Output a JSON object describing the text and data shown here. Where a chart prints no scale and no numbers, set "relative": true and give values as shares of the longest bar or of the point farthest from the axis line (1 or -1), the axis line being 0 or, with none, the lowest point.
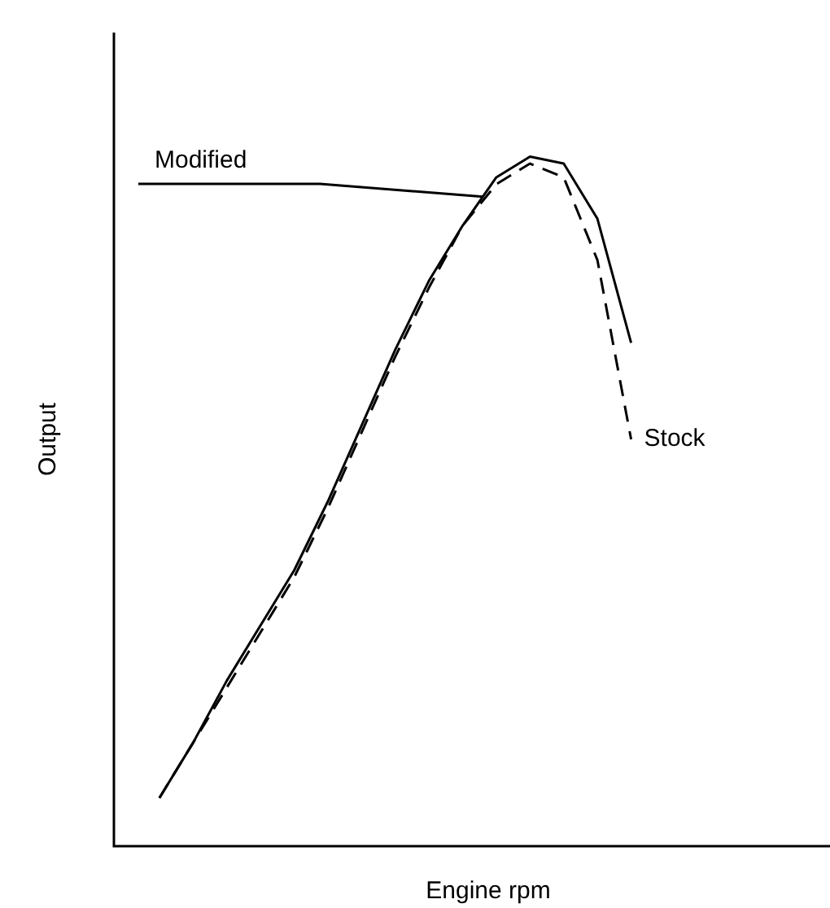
{
  "chart_data": {
    "type": "line",
    "relative": true,
    "xlabel": "Engine rpm",
    "ylabel": "Output",
    "categories": [
      null,
      null,
      null,
      null,
      null,
      null,
      null,
      null,
      null,
      null,
      null,
      null,
      null,
      null,
      null
    ],
    "legend": false,
    "grid": false,
    "marker": "none",
    "tick_labels": false,
    "series": [
      {
        "name": "Modified",
        "color": "#000000",
        "line_style": "solid",
        "values": [
          0.07,
          0.15,
          0.24,
          0.32,
          0.4,
          0.5,
          0.61,
          0.72,
          0.82,
          0.9,
          0.97,
          1,
          0.99,
          0.91,
          0.73
        ]
      },
      {
        "name": "Stock",
        "color": "#000000",
        "line_style": "dashed",
        "values": [
          0.07,
          0.15,
          0.23,
          0.31,
          0.39,
          0.49,
          0.6,
          0.71,
          0.81,
          0.9,
          0.96,
          0.99,
          0.97,
          0.85,
          0.59
        ]
      }
    ]
  }
}
